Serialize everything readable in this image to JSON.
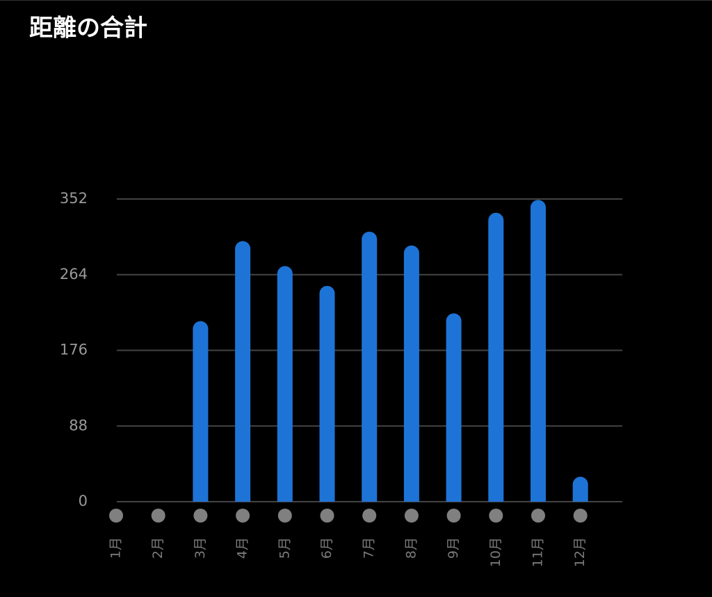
{
  "chart_data": {
    "type": "bar",
    "title": "距離の合計",
    "categories": [
      "1月",
      "2月",
      "3月",
      "4月",
      "5月",
      "6月",
      "7月",
      "8月",
      "9月",
      "10月",
      "11月",
      "12月"
    ],
    "values": [
      0,
      0,
      210,
      303,
      274,
      251,
      314,
      298,
      219,
      336,
      351,
      29
    ],
    "color": "#1e74d6",
    "ylim": [
      0,
      352
    ],
    "yticks": [
      0,
      88,
      176,
      264,
      352
    ],
    "grid": true
  }
}
